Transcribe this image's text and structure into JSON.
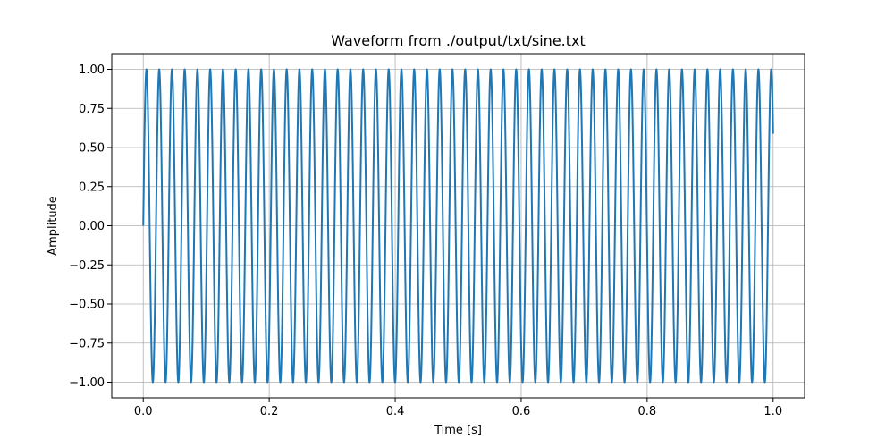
{
  "chart_data": {
    "type": "line",
    "title": "Waveform from ./output/txt/sine.txt",
    "xlabel": "Time [s]",
    "ylabel": "Amplitude",
    "xlim": [
      -0.05,
      1.05
    ],
    "ylim": [
      -1.1,
      1.1
    ],
    "xticks": [
      0.0,
      0.2,
      0.4,
      0.6,
      0.8,
      1.0
    ],
    "xtick_labels": [
      "0.0",
      "0.2",
      "0.4",
      "0.6",
      "0.8",
      "1.0"
    ],
    "yticks": [
      -1.0,
      -0.75,
      -0.5,
      -0.25,
      0.0,
      0.25,
      0.5,
      0.75,
      1.0
    ],
    "ytick_labels": [
      "−1.00",
      "−0.75",
      "−0.50",
      "−0.25",
      "0.00",
      "0.25",
      "0.50",
      "0.75",
      "1.00"
    ],
    "grid": true,
    "series": [
      {
        "color": "#1f77b4",
        "function": "sine",
        "frequency_hz": 49.4,
        "amplitude": 1.0,
        "x_start": 0.0,
        "x_end": 1.0
      }
    ]
  }
}
